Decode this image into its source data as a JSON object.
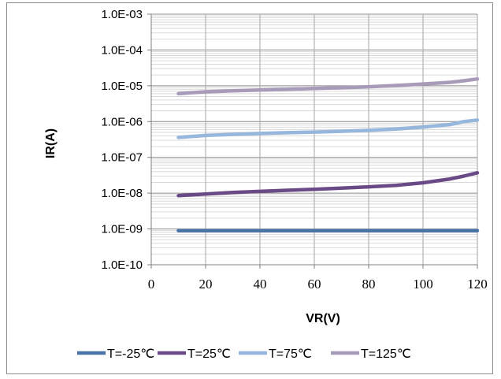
{
  "chart_data": {
    "type": "line",
    "title": "",
    "xlabel": "VR(V)",
    "ylabel": "IR(A)",
    "xlim": [
      0,
      120
    ],
    "ylim": [
      1e-10,
      0.001
    ],
    "yscale": "log",
    "grid": true,
    "legend_position": "bottom",
    "x_ticks": [
      "0",
      "20",
      "40",
      "60",
      "80",
      "100",
      "120"
    ],
    "y_ticks": [
      "1.0E-10",
      "1.0E-09",
      "1.0E-08",
      "1.0E-07",
      "1.0E-06",
      "1.0E-05",
      "1.0E-04",
      "1.0E-03"
    ],
    "x": [
      10,
      20,
      30,
      40,
      50,
      60,
      70,
      80,
      90,
      100,
      110,
      115,
      120
    ],
    "series": [
      {
        "name": "T=-25℃",
        "color": "#4a73a6",
        "values": [
          9e-10,
          9e-10,
          9e-10,
          9e-10,
          9e-10,
          9e-10,
          9e-10,
          9e-10,
          9e-10,
          9e-10,
          9e-10,
          9e-10,
          9e-10
        ]
      },
      {
        "name": "T=25℃",
        "color": "#6a4a86",
        "values": [
          8.5e-09,
          9.5e-09,
          1.05e-08,
          1.12e-08,
          1.2e-08,
          1.28e-08,
          1.38e-08,
          1.5e-08,
          1.65e-08,
          1.95e-08,
          2.5e-08,
          3e-08,
          3.7e-08
        ]
      },
      {
        "name": "T=75℃",
        "color": "#97b6dc",
        "values": [
          3.6e-07,
          4.1e-07,
          4.4e-07,
          4.65e-07,
          4.9e-07,
          5.1e-07,
          5.35e-07,
          5.7e-07,
          6.2e-07,
          7e-07,
          8.3e-07,
          1e-06,
          1.1e-06
        ]
      },
      {
        "name": "T=125℃",
        "color": "#a89ab9",
        "values": [
          6e-06,
          6.8e-06,
          7.2e-06,
          7.6e-06,
          8e-06,
          8.4e-06,
          8.8e-06,
          9.4e-06,
          1.02e-05,
          1.12e-05,
          1.25e-05,
          1.38e-05,
          1.55e-05
        ]
      }
    ]
  }
}
